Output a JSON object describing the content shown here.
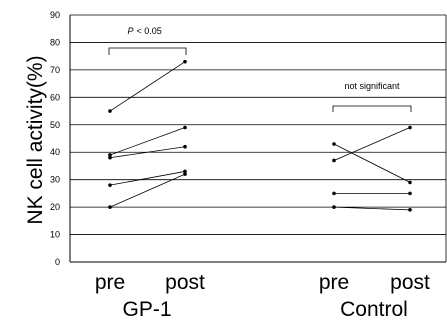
{
  "chart_data": {
    "type": "line",
    "ylabel": "NK cell activity(%)",
    "ylim": [
      0,
      90
    ],
    "yticks": [
      0,
      10,
      20,
      30,
      40,
      50,
      60,
      70,
      80,
      90
    ],
    "grid": true,
    "groups": [
      {
        "name": "GP-1",
        "categories": [
          "pre",
          "post"
        ],
        "pairs": [
          [
            55,
            73
          ],
          [
            39,
            49
          ],
          [
            38,
            42
          ],
          [
            28,
            33
          ],
          [
            20,
            32
          ]
        ],
        "annotation": {
          "prefix": "P",
          "text": "< 0.05"
        }
      },
      {
        "name": "Control",
        "categories": [
          "pre",
          "post"
        ],
        "pairs": [
          [
            43,
            29
          ],
          [
            37,
            49
          ],
          [
            25,
            25
          ],
          [
            20,
            19
          ]
        ],
        "annotation": {
          "prefix": "",
          "text": "not significant"
        }
      }
    ]
  }
}
